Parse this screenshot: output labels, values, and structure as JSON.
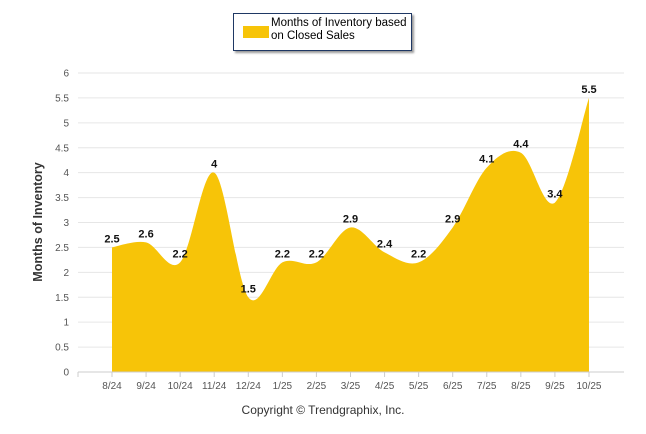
{
  "chart_data": {
    "type": "area",
    "title": "",
    "categories": [
      "8/24",
      "9/24",
      "10/24",
      "11/24",
      "12/24",
      "1/25",
      "2/25",
      "3/25",
      "4/25",
      "5/25",
      "6/25",
      "7/25",
      "8/25",
      "9/25",
      "10/25"
    ],
    "series": [
      {
        "name": "Months of Inventory based on Closed Sales",
        "values": [
          2.5,
          2.6,
          2.2,
          4,
          1.5,
          2.2,
          2.2,
          2.9,
          2.4,
          2.2,
          2.9,
          4.1,
          4.4,
          3.4,
          5.5
        ]
      }
    ],
    "data_labels": [
      "2.5",
      "2.6",
      "2.2",
      "4",
      "1.5",
      "2.2",
      "2.2",
      "2.9",
      "2.4",
      "2.2",
      "2.9",
      "4.1",
      "4.4",
      "3.4",
      "5.5"
    ],
    "xlabel": "",
    "ylabel": "Months of Inventory",
    "ylim": [
      0,
      6
    ],
    "yticks": [
      "0",
      "0.5",
      "1",
      "1.5",
      "2",
      "2.5",
      "3",
      "3.5",
      "4",
      "4.5",
      "5",
      "5.5",
      "6"
    ],
    "grid": true,
    "legend_position": "top-center",
    "color": "#F7C408"
  },
  "legend": {
    "label_line1": "Months of Inventory based",
    "label_line2": "on Closed Sales"
  },
  "footer": {
    "copyright": "Copyright © Trendgraphix, Inc."
  }
}
